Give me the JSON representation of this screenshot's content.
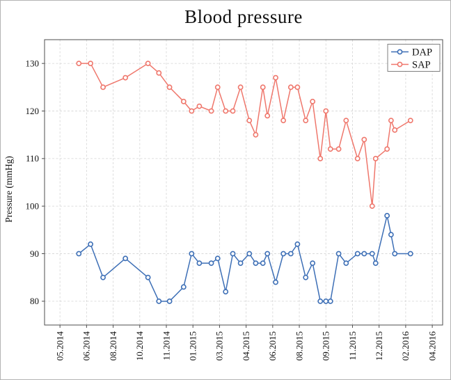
{
  "chart_data": {
    "type": "line",
    "title": "Blood pressure",
    "ylabel": "Pressure (mmHg)",
    "xlabel": "",
    "ylim": [
      75,
      135
    ],
    "xlim": [
      -0.58,
      14.39
    ],
    "y_ticks": [
      80,
      90,
      100,
      110,
      120,
      130
    ],
    "x_tick_labels": [
      "05.2014",
      "06.2014",
      "08.2014",
      "10.2014",
      "11.2014",
      "01.2015",
      "03.2015",
      "04.2015",
      "06.2015",
      "08.2015",
      "09.2015",
      "11.2015",
      "12.2015",
      "02.2016",
      "04.2016"
    ],
    "x_unit": "tick-index (0 = first x tick)",
    "grid": "dashed",
    "legend_position": "top-right",
    "marker": "open-circle",
    "x": [
      0.71,
      1.15,
      1.62,
      2.46,
      3.31,
      3.72,
      4.12,
      4.65,
      4.95,
      5.24,
      5.69,
      5.93,
      6.23,
      6.5,
      6.79,
      7.12,
      7.36,
      7.63,
      7.8,
      8.11,
      8.4,
      8.68,
      8.93,
      9.24,
      9.5,
      9.79,
      10.0,
      10.17,
      10.48,
      10.76,
      11.19,
      11.44,
      11.74,
      11.87,
      12.3,
      12.45,
      12.59,
      13.18
    ],
    "series": [
      {
        "name": "DAP",
        "color": "#3D6FB6",
        "values": [
          90,
          92,
          85,
          89,
          85,
          80,
          80,
          83,
          90,
          88,
          88,
          89,
          82,
          90,
          88,
          90,
          88,
          88,
          90,
          84,
          90,
          90,
          92,
          85,
          88,
          80,
          80,
          80,
          90,
          88,
          90,
          90,
          90,
          88,
          98,
          94,
          90,
          90
        ]
      },
      {
        "name": "SAP",
        "color": "#EF776C",
        "values": [
          130,
          130,
          125,
          127,
          130,
          128,
          125,
          122,
          120,
          121,
          120,
          125,
          120,
          120,
          125,
          118,
          115,
          125,
          119,
          127,
          118,
          125,
          125,
          118,
          122,
          110,
          120,
          112,
          112,
          118,
          110,
          114,
          100,
          110,
          112,
          118,
          116,
          118
        ]
      }
    ]
  }
}
